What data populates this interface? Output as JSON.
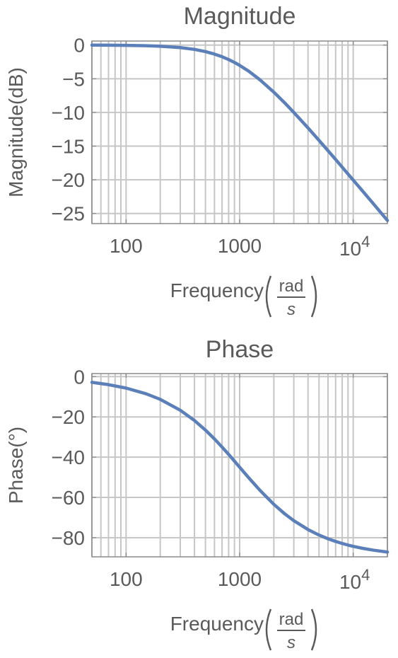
{
  "colors": {
    "series": "#5b7fb9",
    "text": "#5a5a5a",
    "grid": "#c6c6c6",
    "frame": "#8a8a8a"
  },
  "chart_data": [
    {
      "id": "magnitude",
      "type": "line",
      "title": "Magnitude",
      "xlabel": "Frequency",
      "xunit_num": "rad",
      "xunit_den": "s",
      "ylabel": "Magnitude(dB)",
      "xscale": "log",
      "xlim": [
        50,
        20000
      ],
      "ylim": [
        -26.5,
        0.6
      ],
      "grid": true,
      "x_ticks": [
        {
          "value": 100,
          "label": "100"
        },
        {
          "value": 1000,
          "label": "1000"
        },
        {
          "value": 10000,
          "label": "10",
          "sup": "4"
        }
      ],
      "y_ticks": [
        {
          "value": 0,
          "label": "0"
        },
        {
          "value": -5,
          "label": "−5"
        },
        {
          "value": -10,
          "label": "−10"
        },
        {
          "value": -15,
          "label": "−15"
        },
        {
          "value": -20,
          "label": "−20"
        },
        {
          "value": -25,
          "label": "−25"
        }
      ],
      "series": [
        {
          "x": [
            50,
            70,
            100,
            150,
            200,
            300,
            400,
            500,
            600,
            700,
            800,
            900,
            1000,
            1200,
            1500,
            2000,
            2500,
            3000,
            4000,
            5000,
            6000,
            7000,
            8000,
            9000,
            10000,
            12000,
            15000,
            20000
          ],
          "values": [
            -0.01,
            -0.02,
            -0.04,
            -0.1,
            -0.17,
            -0.37,
            -0.64,
            -0.97,
            -1.34,
            -1.73,
            -2.15,
            -2.58,
            -3.01,
            -3.87,
            -5.12,
            -6.99,
            -8.6,
            -10.0,
            -12.3,
            -14.15,
            -15.68,
            -16.98,
            -18.13,
            -19.14,
            -20.04,
            -21.6,
            -23.53,
            -26.03
          ]
        }
      ]
    },
    {
      "id": "phase",
      "type": "line",
      "title": "Phase",
      "xlabel": "Frequency",
      "xunit_num": "rad",
      "xunit_den": "s",
      "ylabel": "Phase(°)",
      "xscale": "log",
      "xlim": [
        50,
        20000
      ],
      "ylim": [
        -89.5,
        1.5
      ],
      "grid": true,
      "x_ticks": [
        {
          "value": 100,
          "label": "100"
        },
        {
          "value": 1000,
          "label": "1000"
        },
        {
          "value": 10000,
          "label": "10",
          "sup": "4"
        }
      ],
      "y_ticks": [
        {
          "value": 0,
          "label": "0"
        },
        {
          "value": -20,
          "label": "−20"
        },
        {
          "value": -40,
          "label": "−40"
        },
        {
          "value": -60,
          "label": "−60"
        },
        {
          "value": -80,
          "label": "−80"
        }
      ],
      "series": [
        {
          "x": [
            50,
            70,
            100,
            150,
            200,
            300,
            400,
            500,
            600,
            700,
            800,
            900,
            1000,
            1200,
            1500,
            2000,
            2500,
            3000,
            4000,
            5000,
            6000,
            7000,
            8000,
            9000,
            10000,
            12000,
            15000,
            20000
          ],
          "values": [
            -2.86,
            -4.0,
            -5.71,
            -8.53,
            -11.31,
            -16.7,
            -21.8,
            -26.57,
            -30.96,
            -34.99,
            -38.66,
            -41.99,
            -45.0,
            -50.19,
            -56.31,
            -63.43,
            -68.2,
            -71.57,
            -75.96,
            -78.69,
            -80.54,
            -81.87,
            -82.87,
            -83.66,
            -84.29,
            -85.24,
            -86.19,
            -87.14
          ]
        }
      ]
    }
  ]
}
